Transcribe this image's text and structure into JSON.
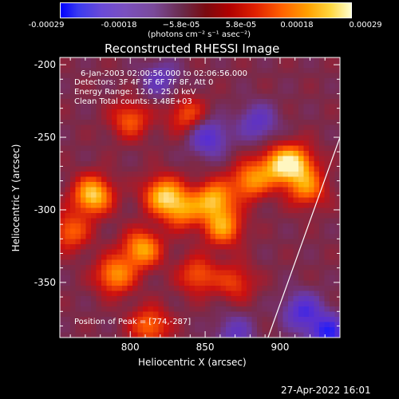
{
  "colorbar": {
    "ticks": [
      "-0.00029",
      "-0.00018",
      "−5.8e-05",
      "5.8e-05",
      "0.00018",
      "0.00029"
    ],
    "units_label": "(photons cm⁻² s⁻¹ asec⁻²)"
  },
  "title": "Reconstructed RHESSI Image",
  "info": {
    "line1": "6-Jan-2003 02:00:56.000 to 02:06:56.000",
    "line2": "Detectors: 3F 4F 5F 6F 7F 8F, Att 0",
    "line3": "Energy Range: 12.0 - 25.0 keV",
    "line4": "Clean     Total counts: 3.48E+03",
    "peak": "Position of Peak = [774,-287]"
  },
  "timestamp": "27-Apr-2022 16:01",
  "chart_data": {
    "type": "heatmap",
    "title": "Reconstructed RHESSI Image",
    "xlabel": "Heliocentric X (arcsec)",
    "ylabel": "Heliocentric Y (arcsec)",
    "xlim": [
      753,
      940
    ],
    "ylim": [
      -388,
      -195
    ],
    "xticks": [
      800,
      850,
      900
    ],
    "yticks": [
      -200,
      -250,
      -300,
      -350
    ],
    "colorbar_range": [
      -0.00029,
      0.00029
    ],
    "colormap": [
      "#1a1aff",
      "#5a2fd0",
      "#6a3aa8",
      "#7a2a4a",
      "#cc1010",
      "#ff5a00",
      "#ffb000",
      "#fff6c0"
    ],
    "limb_line": [
      [
        892,
        -388
      ],
      [
        940,
        -250
      ]
    ],
    "peak": [
      774,
      -287
    ],
    "bright_regions": [
      {
        "x": 775,
        "y": -290,
        "v": 0.00029
      },
      {
        "x": 790,
        "y": -345,
        "v": 0.00022
      },
      {
        "x": 808,
        "y": -327,
        "v": 0.00024
      },
      {
        "x": 813,
        "y": -380,
        "v": 0.00018
      },
      {
        "x": 822,
        "y": -290,
        "v": 0.00026
      },
      {
        "x": 835,
        "y": -300,
        "v": 0.0002
      },
      {
        "x": 856,
        "y": -293,
        "v": 0.00025
      },
      {
        "x": 862,
        "y": -312,
        "v": 0.00022
      },
      {
        "x": 880,
        "y": -280,
        "v": 0.00021
      },
      {
        "x": 898,
        "y": -270,
        "v": 0.0002
      },
      {
        "x": 910,
        "y": -268,
        "v": 0.00024
      },
      {
        "x": 918,
        "y": -285,
        "v": 0.00019
      },
      {
        "x": 800,
        "y": -238,
        "v": 0.00016
      },
      {
        "x": 838,
        "y": -235,
        "v": 0.00015
      },
      {
        "x": 760,
        "y": -315,
        "v": 0.00017
      },
      {
        "x": 845,
        "y": -345,
        "v": 0.00016
      },
      {
        "x": 870,
        "y": -350,
        "v": 0.00013
      }
    ],
    "dark_regions": [
      {
        "x": 852,
        "y": -250,
        "v": -0.00018
      },
      {
        "x": 820,
        "y": -210,
        "v": -0.00012
      },
      {
        "x": 885,
        "y": -240,
        "v": -0.00014
      },
      {
        "x": 932,
        "y": -385,
        "v": -0.00022
      },
      {
        "x": 915,
        "y": -370,
        "v": -0.00018
      },
      {
        "x": 870,
        "y": -385,
        "v": -0.00012
      }
    ]
  }
}
